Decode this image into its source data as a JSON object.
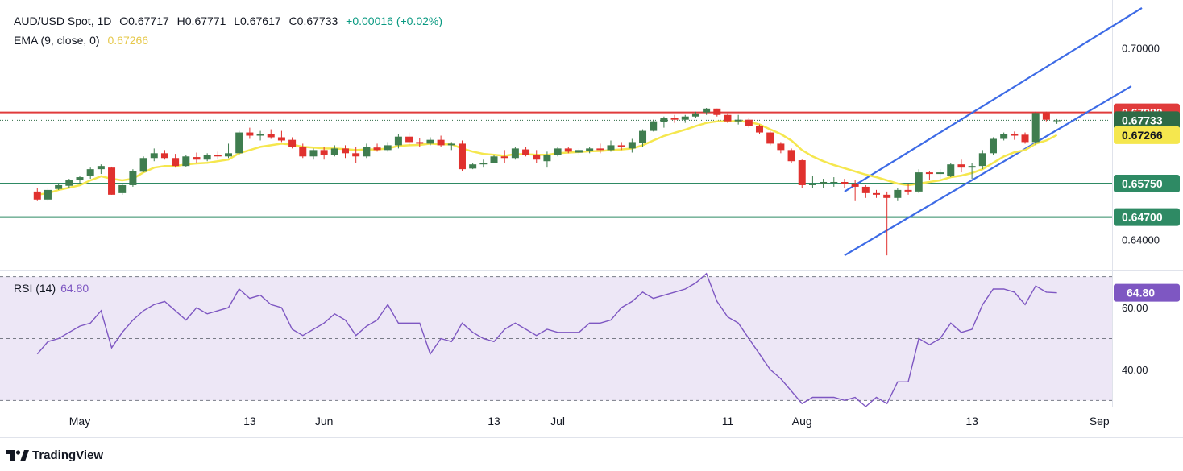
{
  "header": {
    "symbol": "AUD/USD Spot, 1D",
    "open": "O0.67717",
    "high": "H0.67771",
    "low": "L0.67617",
    "close": "C0.67733",
    "change": "+0.00016 (+0.02%)",
    "ema_label": "EMA (9, close, 0)",
    "ema_value": "0.67266"
  },
  "rsi": {
    "label": "RSI (14)",
    "value": "64.80"
  },
  "brand": {
    "name": "TradingView"
  },
  "colors": {
    "up": "#3f7d4f",
    "down": "#e0312e",
    "ema": "#f5e74e",
    "resistance": "#e03b3b",
    "support": "#2e8a64",
    "channel": "#3d6be6",
    "rsi_line": "#7e57c2",
    "rsi_band": "#ede7f6"
  },
  "chart_data": [
    {
      "type": "candlestick",
      "price_ticks": [
        "0.70000",
        "0.64000"
      ],
      "price_ticks_values": [
        0.7,
        0.64
      ],
      "ylim": [
        0.6305,
        0.7082
      ],
      "x_ticks": [
        "May",
        "13",
        "Jun",
        "13",
        "Jul",
        "11",
        "Aug",
        "13",
        "Sep"
      ],
      "x_ticks_index": [
        0,
        16,
        23,
        39,
        45,
        61,
        68,
        84,
        96
      ],
      "start_index": -4,
      "ohlc": [
        [
          0.655,
          0.656,
          0.652,
          0.6525
        ],
        [
          0.6525,
          0.656,
          0.652,
          0.6555
        ],
        [
          0.6558,
          0.6575,
          0.6555,
          0.657
        ],
        [
          0.6568,
          0.659,
          0.656,
          0.6585
        ],
        [
          0.6585,
          0.66,
          0.6575,
          0.6595
        ],
        [
          0.6598,
          0.6625,
          0.659,
          0.662
        ],
        [
          0.662,
          0.6635,
          0.6605,
          0.663
        ],
        [
          0.6625,
          0.6628,
          0.654,
          0.654
        ],
        [
          0.6545,
          0.6575,
          0.654,
          0.657
        ],
        [
          0.657,
          0.662,
          0.6565,
          0.6615
        ],
        [
          0.6612,
          0.666,
          0.661,
          0.6655
        ],
        [
          0.6655,
          0.6685,
          0.6645,
          0.667
        ],
        [
          0.667,
          0.668,
          0.665,
          0.6655
        ],
        [
          0.6655,
          0.6668,
          0.6625,
          0.663
        ],
        [
          0.663,
          0.6665,
          0.6628,
          0.666
        ],
        [
          0.6658,
          0.6672,
          0.664,
          0.665
        ],
        [
          0.665,
          0.667,
          0.6645,
          0.6665
        ],
        [
          0.6665,
          0.6675,
          0.665,
          0.666
        ],
        [
          0.666,
          0.67,
          0.6655,
          0.667
        ],
        [
          0.667,
          0.674,
          0.6665,
          0.6735
        ],
        [
          0.6735,
          0.675,
          0.6715,
          0.6725
        ],
        [
          0.6725,
          0.674,
          0.671,
          0.673
        ],
        [
          0.673,
          0.6745,
          0.6715,
          0.672
        ],
        [
          0.672,
          0.674,
          0.6705,
          0.671
        ],
        [
          0.6712,
          0.672,
          0.6685,
          0.669
        ],
        [
          0.669,
          0.67,
          0.6655,
          0.666
        ],
        [
          0.666,
          0.6685,
          0.665,
          0.668
        ],
        [
          0.668,
          0.669,
          0.665,
          0.6665
        ],
        [
          0.6665,
          0.6695,
          0.666,
          0.6685
        ],
        [
          0.6685,
          0.6695,
          0.6655,
          0.667
        ],
        [
          0.667,
          0.669,
          0.664,
          0.666
        ],
        [
          0.666,
          0.67,
          0.6655,
          0.669
        ],
        [
          0.6688,
          0.67,
          0.6675,
          0.668
        ],
        [
          0.668,
          0.6705,
          0.6675,
          0.6695
        ],
        [
          0.6695,
          0.673,
          0.6685,
          0.6722
        ],
        [
          0.6722,
          0.6735,
          0.6695,
          0.6705
        ],
        [
          0.6705,
          0.6718,
          0.669,
          0.67
        ],
        [
          0.67,
          0.672,
          0.6695,
          0.6712
        ],
        [
          0.6712,
          0.6725,
          0.669,
          0.6695
        ],
        [
          0.6695,
          0.6705,
          0.668,
          0.67
        ],
        [
          0.67,
          0.671,
          0.6615,
          0.662
        ],
        [
          0.6622,
          0.664,
          0.662,
          0.6635
        ],
        [
          0.6635,
          0.665,
          0.6625,
          0.664
        ],
        [
          0.664,
          0.6665,
          0.6638,
          0.666
        ],
        [
          0.666,
          0.668,
          0.664,
          0.6655
        ],
        [
          0.6655,
          0.669,
          0.665,
          0.6685
        ],
        [
          0.6682,
          0.669,
          0.666,
          0.6665
        ],
        [
          0.6665,
          0.668,
          0.664,
          0.665
        ],
        [
          0.6645,
          0.6675,
          0.6625,
          0.6665
        ],
        [
          0.6665,
          0.669,
          0.666,
          0.6685
        ],
        [
          0.6685,
          0.669,
          0.667,
          0.6675
        ],
        [
          0.6672,
          0.6685,
          0.6665,
          0.668
        ],
        [
          0.6678,
          0.669,
          0.667,
          0.6685
        ],
        [
          0.6685,
          0.67,
          0.667,
          0.668
        ],
        [
          0.668,
          0.671,
          0.6675,
          0.6695
        ],
        [
          0.6695,
          0.6705,
          0.668,
          0.669
        ],
        [
          0.6685,
          0.6715,
          0.6672,
          0.6705
        ],
        [
          0.6703,
          0.6745,
          0.669,
          0.674
        ],
        [
          0.674,
          0.6775,
          0.6738,
          0.677
        ],
        [
          0.6768,
          0.6785,
          0.675,
          0.678
        ],
        [
          0.678,
          0.679,
          0.6765,
          0.6775
        ],
        [
          0.6775,
          0.679,
          0.6765,
          0.6785
        ],
        [
          0.6785,
          0.68,
          0.678,
          0.6795
        ],
        [
          0.6798,
          0.6812,
          0.679,
          0.681
        ],
        [
          0.681,
          0.681,
          0.6785,
          0.679
        ],
        [
          0.679,
          0.6795,
          0.6765,
          0.677
        ],
        [
          0.677,
          0.679,
          0.676,
          0.6775
        ],
        [
          0.6775,
          0.678,
          0.675,
          0.6755
        ],
        [
          0.6755,
          0.676,
          0.673,
          0.6735
        ],
        [
          0.6735,
          0.674,
          0.6695,
          0.67
        ],
        [
          0.67,
          0.6705,
          0.667,
          0.668
        ],
        [
          0.668,
          0.6685,
          0.664,
          0.6645
        ],
        [
          0.6648,
          0.665,
          0.656,
          0.657
        ],
        [
          0.657,
          0.66,
          0.656,
          0.6575
        ],
        [
          0.6575,
          0.659,
          0.656,
          0.658
        ],
        [
          0.658,
          0.6595,
          0.6565,
          0.658
        ],
        [
          0.658,
          0.659,
          0.656,
          0.6575
        ],
        [
          0.6575,
          0.6585,
          0.652,
          0.6565
        ],
        [
          0.6565,
          0.657,
          0.653,
          0.6545
        ],
        [
          0.6545,
          0.6555,
          0.653,
          0.654
        ],
        [
          0.654,
          0.655,
          0.635,
          0.653
        ],
        [
          0.653,
          0.656,
          0.652,
          0.6555
        ],
        [
          0.6555,
          0.6575,
          0.654,
          0.655
        ],
        [
          0.655,
          0.662,
          0.6545,
          0.661
        ],
        [
          0.661,
          0.6615,
          0.6585,
          0.6605
        ],
        [
          0.6605,
          0.662,
          0.659,
          0.661
        ],
        [
          0.66,
          0.664,
          0.6595,
          0.6635
        ],
        [
          0.6635,
          0.665,
          0.661,
          0.6625
        ],
        [
          0.6625,
          0.664,
          0.659,
          0.663
        ],
        [
          0.663,
          0.668,
          0.662,
          0.667
        ],
        [
          0.667,
          0.672,
          0.6665,
          0.6715
        ],
        [
          0.6715,
          0.6735,
          0.671,
          0.673
        ],
        [
          0.673,
          0.6738,
          0.6712,
          0.6725
        ],
        [
          0.6728,
          0.6735,
          0.67,
          0.6705
        ],
        [
          0.6705,
          0.68,
          0.6695,
          0.6796
        ],
        [
          0.6796,
          0.68,
          0.677,
          0.6775
        ],
        [
          0.6772,
          0.6777,
          0.6762,
          0.6773
        ]
      ],
      "ema": {
        "label": "EMA (9, close, 0)",
        "start_index": -4,
        "values": [
          0.654,
          0.6545,
          0.6555,
          0.6562,
          0.657,
          0.6585,
          0.6598,
          0.659,
          0.6585,
          0.659,
          0.661,
          0.6625,
          0.663,
          0.663,
          0.6635,
          0.6638,
          0.664,
          0.6645,
          0.665,
          0.667,
          0.668,
          0.669,
          0.6695,
          0.67,
          0.6697,
          0.669,
          0.6688,
          0.6685,
          0.6685,
          0.6683,
          0.668,
          0.6682,
          0.6682,
          0.6685,
          0.6693,
          0.6695,
          0.6696,
          0.67,
          0.6698,
          0.6698,
          0.6685,
          0.6675,
          0.6668,
          0.6665,
          0.6662,
          0.6667,
          0.6667,
          0.6665,
          0.6665,
          0.667,
          0.6672,
          0.6674,
          0.6676,
          0.6677,
          0.668,
          0.6682,
          0.6685,
          0.6695,
          0.671,
          0.6724,
          0.6734,
          0.6744,
          0.6755,
          0.6765,
          0.677,
          0.677,
          0.6771,
          0.6768,
          0.676,
          0.6745,
          0.673,
          0.671,
          0.668,
          0.666,
          0.6645,
          0.6633,
          0.6623,
          0.6613,
          0.6603,
          0.6595,
          0.6585,
          0.6575,
          0.657,
          0.6575,
          0.658,
          0.6585,
          0.6595,
          0.66,
          0.6608,
          0.662,
          0.664,
          0.666,
          0.6673,
          0.668,
          0.67,
          0.671,
          0.6727
        ]
      },
      "levels": [
        {
          "label": "0.67980",
          "value": 0.6798,
          "color": "#e03b3b"
        },
        {
          "label": "0.65750",
          "value": 0.6575,
          "color": "#2e8a64"
        },
        {
          "label": "0.64700",
          "value": 0.647,
          "color": "#2e8a64"
        }
      ],
      "price_tags": [
        {
          "label": "0.67733",
          "value": 0.67733,
          "color": "#2e6b46"
        },
        {
          "label": "0.67266",
          "value": 0.67266,
          "color": "#f5e74e"
        }
      ],
      "current_price": 0.67733,
      "channel": {
        "lower": {
          "from": [
            72,
            0.635
          ],
          "to": [
            99,
            0.688
          ]
        },
        "upper": {
          "from": [
            72,
            0.655
          ],
          "to": [
            100,
            0.7125
          ]
        }
      }
    },
    {
      "type": "line",
      "name": "RSI (14)",
      "ylim": [
        28,
        72
      ],
      "y_ticks": [
        "60.00",
        "40.00"
      ],
      "y_ticks_values": [
        60,
        40
      ],
      "bands": [
        70,
        50,
        30
      ],
      "start_index": -4,
      "values": [
        45,
        49,
        50,
        52,
        54,
        55,
        59,
        47,
        52,
        56,
        59,
        61,
        62,
        59,
        56,
        60,
        58,
        59,
        60,
        66,
        63,
        64,
        61,
        60,
        53,
        51,
        53,
        55,
        58,
        56,
        51,
        54,
        56,
        61,
        55,
        55,
        55,
        45,
        50,
        49,
        55,
        52,
        50,
        49,
        53,
        55,
        53,
        51,
        53,
        52,
        52,
        52,
        55,
        55,
        56,
        60,
        62,
        65,
        63,
        64,
        65,
        66,
        68,
        71,
        62,
        57,
        55,
        50,
        45,
        40,
        37,
        33,
        29,
        31,
        31,
        31,
        30,
        31,
        28,
        31,
        29,
        36,
        36,
        50,
        48,
        50,
        55,
        52,
        53,
        61,
        66,
        66,
        65,
        61,
        67,
        65,
        64.8
      ],
      "current_label": "64.80"
    }
  ]
}
